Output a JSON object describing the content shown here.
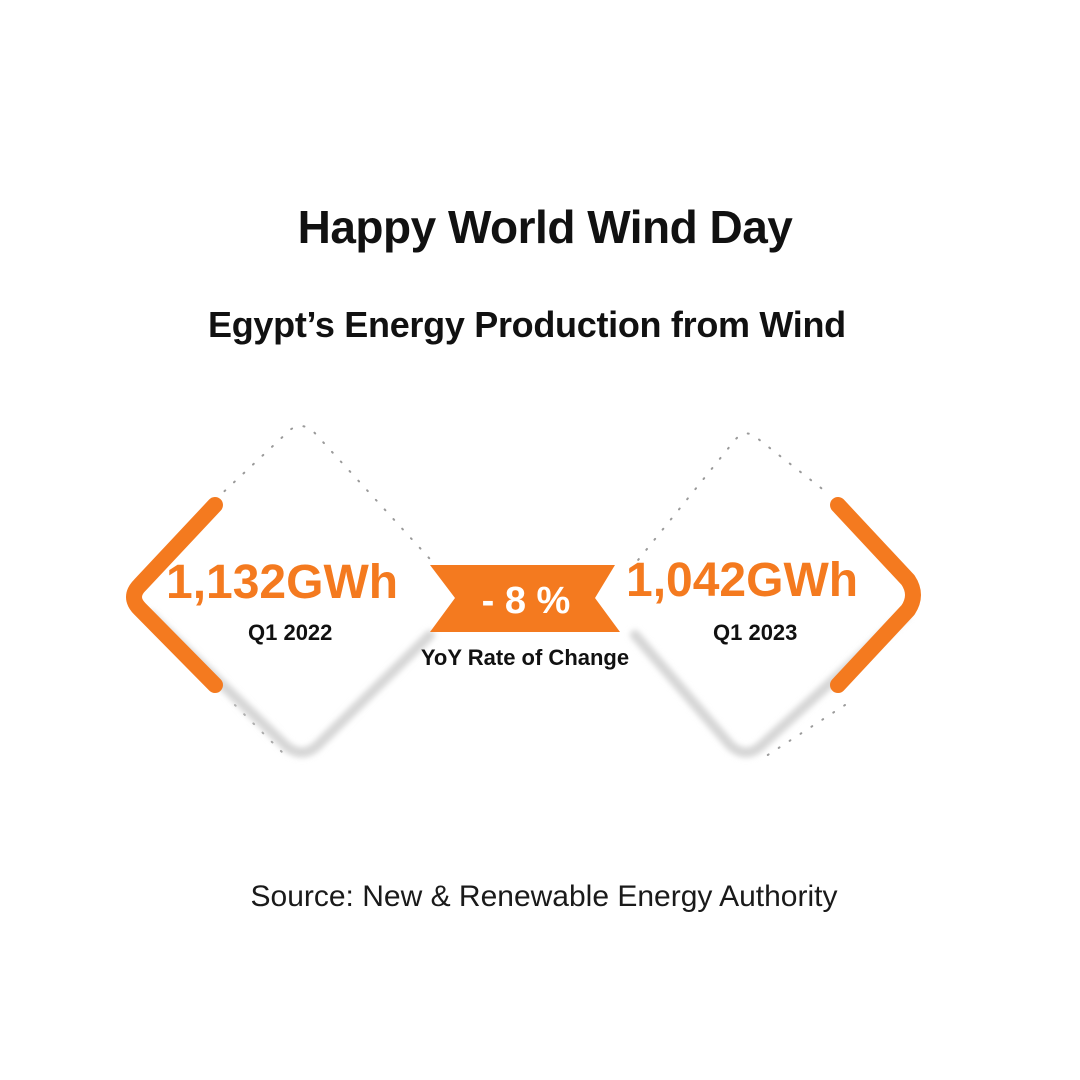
{
  "title": "Happy World Wind Day",
  "subtitle": "Egypt’s Energy Production from Wind",
  "left_card": {
    "value": "1,132GWh",
    "period": "Q1 2022"
  },
  "right_card": {
    "value": "1,042GWh",
    "period": "Q1 2023"
  },
  "change": {
    "value": "- 8 %",
    "label": "YoY Rate of Change"
  },
  "source": "Source: New & Renewable Energy Authority",
  "colors": {
    "accent": "#f47a1f",
    "text": "#111111",
    "shadow": "#d9d9d9",
    "background": "#ffffff"
  }
}
